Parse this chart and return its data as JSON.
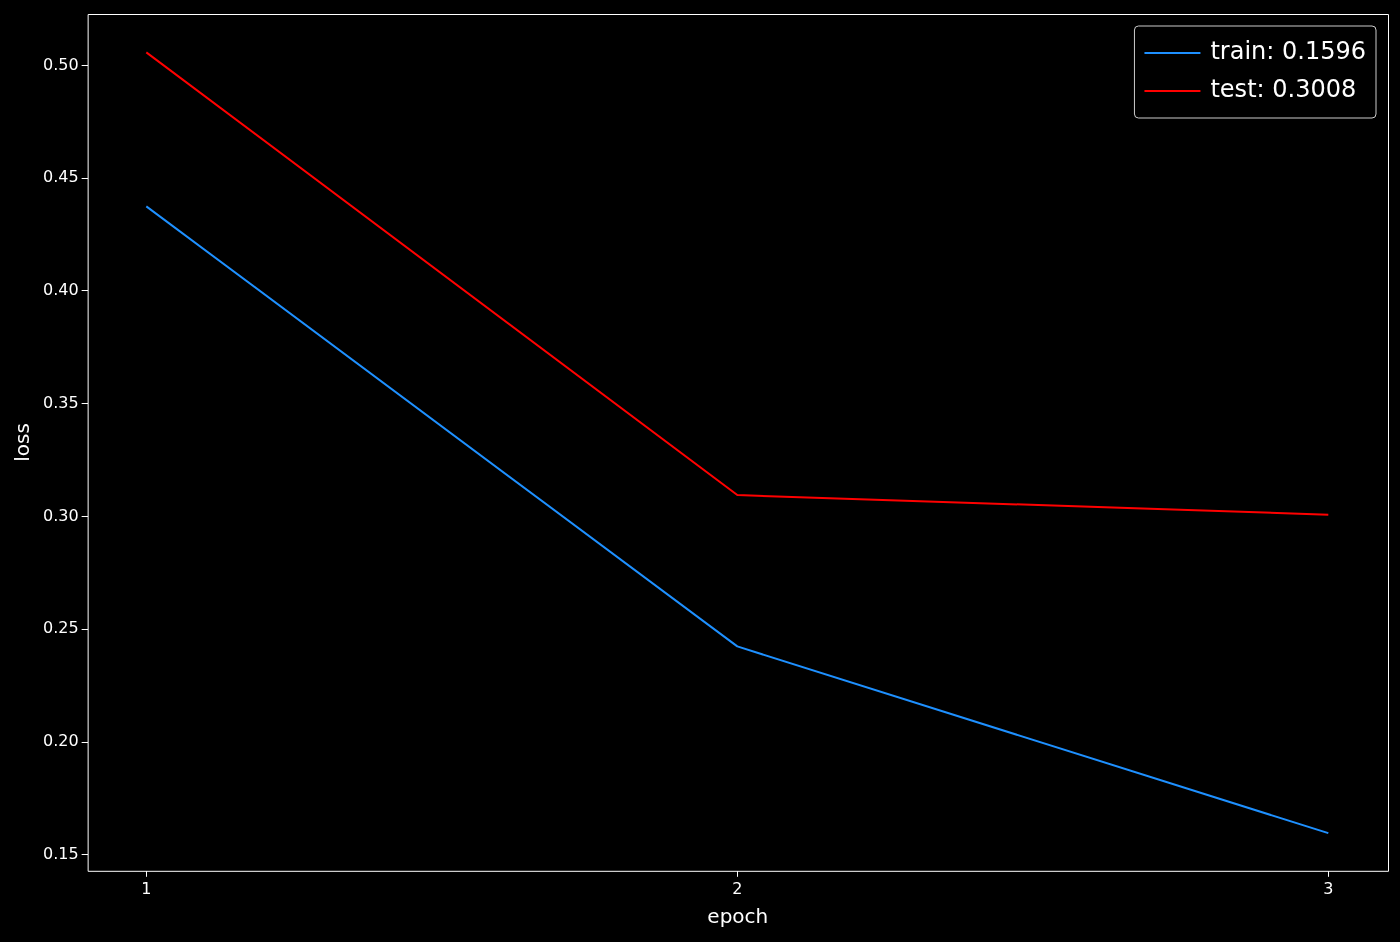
{
  "chart_data": {
    "type": "line",
    "xlabel": "epoch",
    "ylabel": "loss",
    "x": [
      1,
      2,
      3
    ],
    "series": [
      {
        "name": "train: 0.1596",
        "color": "#1e90ff",
        "values": [
          0.4375,
          0.2424,
          0.1596
        ]
      },
      {
        "name": "test: 0.3008",
        "color": "#ff0000",
        "values": [
          0.5058,
          0.3095,
          0.3008
        ]
      }
    ],
    "xlim": [
      0.9007,
      3.101
    ],
    "xticks": [
      1,
      2,
      3
    ],
    "ylim": [
      0.1429,
      0.5228
    ],
    "yticks": [
      0.15,
      {
        "value": 0.2,
        "label": "0.20"
      },
      0.25,
      {
        "value": 0.3,
        "label": "0.30"
      },
      0.35,
      {
        "value": 0.4,
        "label": "0.40"
      },
      0.45,
      {
        "value": 0.5,
        "label": "0.50"
      }
    ],
    "grid": false,
    "legend": "top right",
    "marker": "none",
    "line_style": "solid"
  }
}
